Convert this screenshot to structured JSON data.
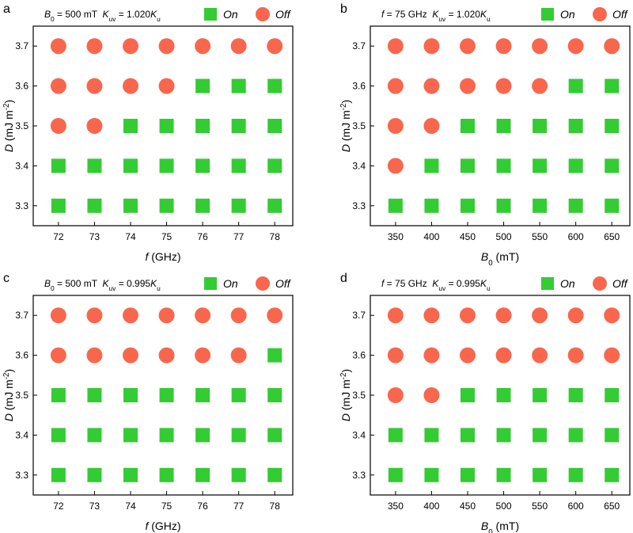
{
  "chart_data": [
    {
      "type": "scatter",
      "panel": "a",
      "title": [
        {
          "text": "B",
          "italic": true
        },
        {
          "text": "0",
          "sub": true
        },
        {
          "text": " = 500 mT  "
        },
        {
          "text": "K",
          "italic": true
        },
        {
          "text": "uv",
          "sub": true
        },
        {
          "text": " = 1.020"
        },
        {
          "text": "K",
          "italic": true
        },
        {
          "text": "u",
          "sub": true
        }
      ],
      "xlabel": [
        {
          "text": "f",
          "italic": true
        },
        {
          "text": " (GHz)"
        }
      ],
      "ylabel": [
        {
          "text": "D",
          "italic": true
        },
        {
          "text": " (mJ m"
        },
        {
          "text": "-2",
          "sup": true
        },
        {
          "text": ")"
        }
      ],
      "xlim": [
        71.3,
        78.5
      ],
      "ylim": [
        3.25,
        3.75
      ],
      "xticks": [
        72,
        73,
        74,
        75,
        76,
        77,
        78
      ],
      "yticks": [
        3.3,
        3.4,
        3.5,
        3.6,
        3.7
      ],
      "series": [
        {
          "name": "On",
          "marker": "square",
          "color": "#33cc33",
          "x": [
            76,
            77,
            78,
            74,
            75,
            76,
            77,
            78,
            72,
            73,
            74,
            75,
            76,
            77,
            78,
            72,
            73,
            74,
            75,
            76,
            77,
            78
          ],
          "values": [
            3.6,
            3.6,
            3.6,
            3.5,
            3.5,
            3.5,
            3.5,
            3.5,
            3.4,
            3.4,
            3.4,
            3.4,
            3.4,
            3.4,
            3.4,
            3.3,
            3.3,
            3.3,
            3.3,
            3.3,
            3.3,
            3.3
          ]
        },
        {
          "name": "Off",
          "marker": "circle",
          "color": "#f8674d",
          "x": [
            72,
            73,
            74,
            75,
            76,
            77,
            78,
            72,
            73,
            74,
            75,
            72,
            73
          ],
          "values": [
            3.7,
            3.7,
            3.7,
            3.7,
            3.7,
            3.7,
            3.7,
            3.6,
            3.6,
            3.6,
            3.6,
            3.5,
            3.5
          ]
        }
      ]
    },
    {
      "type": "scatter",
      "panel": "b",
      "title": [
        {
          "text": "f",
          "italic": true
        },
        {
          "text": " = 75 GHz  "
        },
        {
          "text": "K",
          "italic": true
        },
        {
          "text": "uv",
          "sub": true
        },
        {
          "text": " = 1.020"
        },
        {
          "text": "K",
          "italic": true
        },
        {
          "text": "u",
          "sub": true
        }
      ],
      "xlabel": [
        {
          "text": "B",
          "italic": true
        },
        {
          "text": "0",
          "sub": true
        },
        {
          "text": " (mT)"
        }
      ],
      "ylabel": [
        {
          "text": "D",
          "italic": true
        },
        {
          "text": " (mJ m"
        },
        {
          "text": "-2",
          "sup": true
        },
        {
          "text": ")"
        }
      ],
      "xlim": [
        315,
        675
      ],
      "ylim": [
        3.25,
        3.75
      ],
      "xticks": [
        350,
        400,
        450,
        500,
        550,
        600,
        650
      ],
      "yticks": [
        3.3,
        3.4,
        3.5,
        3.6,
        3.7
      ],
      "series": [
        {
          "name": "On",
          "marker": "square",
          "color": "#33cc33",
          "x": [
            600,
            650,
            450,
            500,
            550,
            600,
            650,
            400,
            450,
            500,
            550,
            600,
            650,
            350,
            400,
            450,
            500,
            550,
            600,
            650
          ],
          "values": [
            3.6,
            3.6,
            3.5,
            3.5,
            3.5,
            3.5,
            3.5,
            3.4,
            3.4,
            3.4,
            3.4,
            3.4,
            3.4,
            3.3,
            3.3,
            3.3,
            3.3,
            3.3,
            3.3,
            3.3
          ]
        },
        {
          "name": "Off",
          "marker": "circle",
          "color": "#f8674d",
          "x": [
            350,
            400,
            450,
            500,
            550,
            600,
            650,
            350,
            400,
            450,
            500,
            550,
            350,
            400,
            350
          ],
          "values": [
            3.7,
            3.7,
            3.7,
            3.7,
            3.7,
            3.7,
            3.7,
            3.6,
            3.6,
            3.6,
            3.6,
            3.6,
            3.5,
            3.5,
            3.4
          ]
        }
      ]
    },
    {
      "type": "scatter",
      "panel": "c",
      "title": [
        {
          "text": "B",
          "italic": true
        },
        {
          "text": "0",
          "sub": true
        },
        {
          "text": " = 500 mT  "
        },
        {
          "text": "K",
          "italic": true
        },
        {
          "text": "uv",
          "sub": true
        },
        {
          "text": " = 0.995"
        },
        {
          "text": "K",
          "italic": true
        },
        {
          "text": "u",
          "sub": true
        }
      ],
      "xlabel": [
        {
          "text": "f",
          "italic": true
        },
        {
          "text": " (GHz)"
        }
      ],
      "ylabel": [
        {
          "text": "D",
          "italic": true
        },
        {
          "text": " (mJ m"
        },
        {
          "text": "-2",
          "sup": true
        },
        {
          "text": ")"
        }
      ],
      "xlim": [
        71.3,
        78.5
      ],
      "ylim": [
        3.25,
        3.75
      ],
      "xticks": [
        72,
        73,
        74,
        75,
        76,
        77,
        78
      ],
      "yticks": [
        3.3,
        3.4,
        3.5,
        3.6,
        3.7
      ],
      "series": [
        {
          "name": "On",
          "marker": "square",
          "color": "#33cc33",
          "x": [
            78,
            72,
            73,
            74,
            75,
            76,
            77,
            78,
            72,
            73,
            74,
            75,
            76,
            77,
            78,
            72,
            73,
            74,
            75,
            76,
            77,
            78
          ],
          "values": [
            3.6,
            3.5,
            3.5,
            3.5,
            3.5,
            3.5,
            3.5,
            3.5,
            3.4,
            3.4,
            3.4,
            3.4,
            3.4,
            3.4,
            3.4,
            3.3,
            3.3,
            3.3,
            3.3,
            3.3,
            3.3,
            3.3
          ]
        },
        {
          "name": "Off",
          "marker": "circle",
          "color": "#f8674d",
          "x": [
            72,
            73,
            74,
            75,
            76,
            77,
            78,
            72,
            73,
            74,
            75,
            76,
            77
          ],
          "values": [
            3.7,
            3.7,
            3.7,
            3.7,
            3.7,
            3.7,
            3.7,
            3.6,
            3.6,
            3.6,
            3.6,
            3.6,
            3.6
          ]
        }
      ]
    },
    {
      "type": "scatter",
      "panel": "d",
      "title": [
        {
          "text": "f",
          "italic": true
        },
        {
          "text": " = 75 GHz  "
        },
        {
          "text": "K",
          "italic": true
        },
        {
          "text": "uv",
          "sub": true
        },
        {
          "text": " = 0.995"
        },
        {
          "text": "K",
          "italic": true
        },
        {
          "text": "u",
          "sub": true
        }
      ],
      "xlabel": [
        {
          "text": "B",
          "italic": true
        },
        {
          "text": "0",
          "sub": true
        },
        {
          "text": " (mT)"
        }
      ],
      "ylabel": [
        {
          "text": "D",
          "italic": true
        },
        {
          "text": " (mJ m"
        },
        {
          "text": "-2",
          "sup": true
        },
        {
          "text": ")"
        }
      ],
      "xlim": [
        315,
        675
      ],
      "ylim": [
        3.25,
        3.75
      ],
      "xticks": [
        350,
        400,
        450,
        500,
        550,
        600,
        650
      ],
      "yticks": [
        3.3,
        3.4,
        3.5,
        3.6,
        3.7
      ],
      "series": [
        {
          "name": "On",
          "marker": "square",
          "color": "#33cc33",
          "x": [
            450,
            500,
            550,
            600,
            650,
            350,
            400,
            450,
            500,
            550,
            600,
            650,
            350,
            400,
            450,
            500,
            550,
            600,
            650
          ],
          "values": [
            3.5,
            3.5,
            3.5,
            3.5,
            3.5,
            3.4,
            3.4,
            3.4,
            3.4,
            3.4,
            3.4,
            3.4,
            3.3,
            3.3,
            3.3,
            3.3,
            3.3,
            3.3,
            3.3
          ]
        },
        {
          "name": "Off",
          "marker": "circle",
          "color": "#f8674d",
          "x": [
            350,
            400,
            450,
            500,
            550,
            600,
            650,
            350,
            400,
            450,
            500,
            550,
            600,
            650,
            350,
            400
          ],
          "values": [
            3.7,
            3.7,
            3.7,
            3.7,
            3.7,
            3.7,
            3.7,
            3.6,
            3.6,
            3.6,
            3.6,
            3.6,
            3.6,
            3.6,
            3.5,
            3.5
          ]
        }
      ]
    }
  ]
}
